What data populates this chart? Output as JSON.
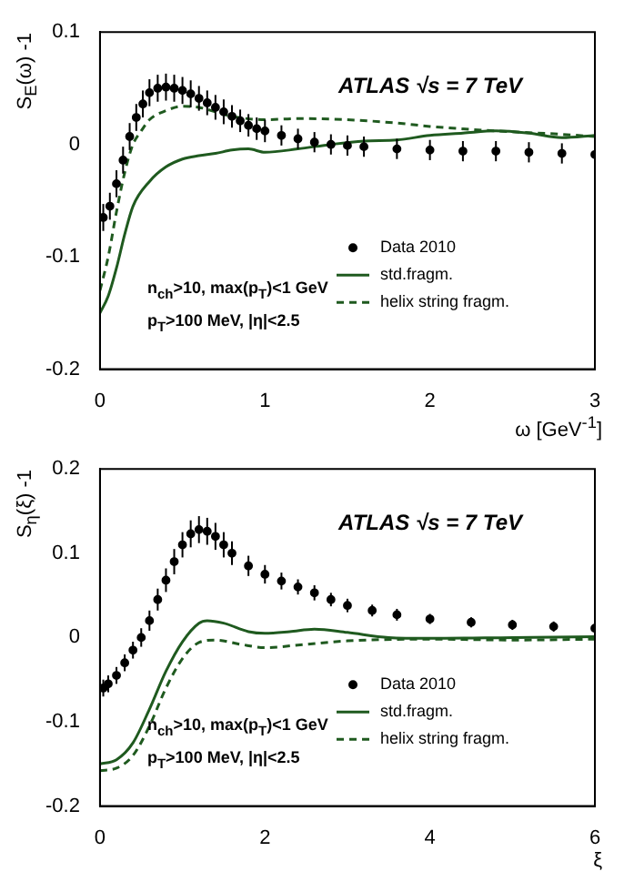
{
  "chart_data": [
    {
      "type": "scatter",
      "xlabel": "ω [GeV$^{-1}$]",
      "ylabel": "S$_{E}$(ω) -1",
      "xlim": [
        0,
        3
      ],
      "ylim": [
        -0.2,
        0.1
      ],
      "xticks": [
        0,
        1,
        2,
        3
      ],
      "yticks": [
        -0.2,
        -0.1,
        0,
        0.1
      ],
      "grid": false,
      "legend": "bottom right",
      "annotations": [
        "ATLAS √s = 7 TeV",
        "n$_{ch}$>10, max(p$_{T}$)<1 GeV",
        "p$_{T}$>100 MeV, |η|<2.5"
      ],
      "series": [
        {
          "name": "Data 2010",
          "type": "scatter",
          "marker": "circle",
          "color": "#000000",
          "x": [
            0.02,
            0.06,
            0.1,
            0.14,
            0.18,
            0.22,
            0.26,
            0.3,
            0.35,
            0.4,
            0.45,
            0.5,
            0.55,
            0.6,
            0.65,
            0.7,
            0.75,
            0.8,
            0.85,
            0.9,
            0.95,
            1.0,
            1.1,
            1.2,
            1.3,
            1.4,
            1.5,
            1.6,
            1.8,
            2.0,
            2.2,
            2.4,
            2.6,
            2.8,
            3.0
          ],
          "values": [
            -0.065,
            -0.055,
            -0.035,
            -0.014,
            0.007,
            0.024,
            0.036,
            0.046,
            0.05,
            0.051,
            0.05,
            0.048,
            0.045,
            0.041,
            0.037,
            0.033,
            0.029,
            0.025,
            0.021,
            0.017,
            0.014,
            0.012,
            0.008,
            0.005,
            0.002,
            0,
            -0.001,
            -0.002,
            -0.004,
            -0.005,
            -0.006,
            -0.006,
            -0.007,
            -0.008,
            -0.009
          ],
          "errors": [
            0.012,
            0.012,
            0.012,
            0.012,
            0.012,
            0.012,
            0.012,
            0.012,
            0.012,
            0.012,
            0.012,
            0.012,
            0.012,
            0.011,
            0.011,
            0.011,
            0.011,
            0.01,
            0.01,
            0.01,
            0.01,
            0.01,
            0.009,
            0.009,
            0.009,
            0.009,
            0.009,
            0.009,
            0.009,
            0.009,
            0.009,
            0.009,
            0.009,
            0.009,
            0.009
          ]
        },
        {
          "name": "std.fragm.",
          "type": "line",
          "marker": "none",
          "line_style": "solid",
          "color": "#1f5a1f",
          "x": [
            0,
            0.05,
            0.1,
            0.15,
            0.2,
            0.3,
            0.4,
            0.5,
            0.6,
            0.7,
            0.8,
            0.9,
            1.0,
            1.2,
            1.4,
            1.6,
            1.8,
            2.0,
            2.2,
            2.4,
            2.6,
            2.8,
            3.0
          ],
          "values": [
            -0.15,
            -0.135,
            -0.11,
            -0.08,
            -0.055,
            -0.033,
            -0.02,
            -0.013,
            -0.01,
            -0.008,
            -0.005,
            -0.004,
            -0.007,
            -0.004,
            0,
            0.003,
            0.004,
            0.008,
            0.01,
            0.012,
            0.01,
            0.006,
            0.008
          ]
        },
        {
          "name": "helix string fragm.",
          "type": "line",
          "marker": "none",
          "line_style": "dashed",
          "color": "#1f5a1f",
          "x": [
            0,
            0.05,
            0.1,
            0.15,
            0.2,
            0.25,
            0.3,
            0.4,
            0.5,
            0.6,
            0.7,
            0.8,
            1.0,
            1.2,
            1.5,
            1.8,
            2.0,
            2.4,
            2.8,
            3.0
          ],
          "values": [
            -0.13,
            -0.1,
            -0.06,
            -0.025,
            0,
            0.012,
            0.022,
            0.03,
            0.034,
            0.033,
            0.029,
            0.025,
            0.022,
            0.023,
            0.022,
            0.019,
            0.016,
            0.012,
            0.009,
            0.007
          ]
        }
      ]
    },
    {
      "type": "scatter",
      "xlabel": "ξ",
      "ylabel": "S$_{η}$(ξ) -1",
      "xlim": [
        0,
        6
      ],
      "ylim": [
        -0.2,
        0.2
      ],
      "xticks": [
        0,
        2,
        4,
        6
      ],
      "yticks": [
        -0.2,
        -0.1,
        0,
        0.1,
        0.2
      ],
      "grid": false,
      "legend": "bottom right",
      "annotations": [
        "ATLAS √s = 7 TeV",
        "n$_{ch}$>10, max(p$_{T}$)<1 GeV",
        "p$_{T}$>100 MeV, |η|<2.5"
      ],
      "series": [
        {
          "name": "Data 2010",
          "type": "scatter",
          "marker": "circle",
          "color": "#000000",
          "x": [
            0.04,
            0.1,
            0.2,
            0.3,
            0.4,
            0.5,
            0.6,
            0.7,
            0.8,
            0.9,
            1.0,
            1.1,
            1.2,
            1.3,
            1.4,
            1.5,
            1.6,
            1.8,
            2.0,
            2.2,
            2.4,
            2.6,
            2.8,
            3.0,
            3.3,
            3.6,
            4.0,
            4.5,
            5.0,
            5.5,
            6.0
          ],
          "values": [
            -0.06,
            -0.055,
            -0.045,
            -0.03,
            -0.015,
            0,
            0.02,
            0.045,
            0.068,
            0.09,
            0.11,
            0.123,
            0.128,
            0.126,
            0.12,
            0.11,
            0.1,
            0.085,
            0.075,
            0.067,
            0.06,
            0.053,
            0.045,
            0.038,
            0.032,
            0.027,
            0.022,
            0.018,
            0.015,
            0.013,
            0.011
          ],
          "errors": [
            0.01,
            0.01,
            0.01,
            0.01,
            0.01,
            0.011,
            0.012,
            0.013,
            0.014,
            0.015,
            0.015,
            0.016,
            0.016,
            0.016,
            0.016,
            0.015,
            0.014,
            0.012,
            0.011,
            0.01,
            0.009,
            0.009,
            0.008,
            0.008,
            0.007,
            0.007,
            0.006,
            0.006,
            0.006,
            0.006,
            0.006
          ]
        },
        {
          "name": "std.fragm.",
          "type": "line",
          "marker": "none",
          "line_style": "solid",
          "color": "#1f5a1f",
          "x": [
            0,
            0.2,
            0.4,
            0.6,
            0.8,
            1.0,
            1.2,
            1.3,
            1.5,
            1.8,
            2.0,
            2.3,
            2.6,
            3.0,
            3.5,
            4.0,
            5.0,
            6.0
          ],
          "values": [
            -0.15,
            -0.145,
            -0.125,
            -0.085,
            -0.04,
            -0.005,
            0.017,
            0.02,
            0.017,
            0.007,
            0.005,
            0.007,
            0.01,
            0.006,
            0,
            -0.001,
            0,
            0.001
          ]
        },
        {
          "name": "helix string fragm.",
          "type": "line",
          "marker": "none",
          "line_style": "dashed",
          "color": "#1f5a1f",
          "x": [
            0,
            0.2,
            0.4,
            0.6,
            0.8,
            1.0,
            1.2,
            1.4,
            1.7,
            2.0,
            2.5,
            3.0,
            4.0,
            5.0,
            6.0
          ],
          "values": [
            -0.158,
            -0.155,
            -0.14,
            -0.105,
            -0.06,
            -0.025,
            -0.006,
            -0.003,
            -0.008,
            -0.012,
            -0.008,
            -0.004,
            -0.002,
            -0.003,
            -0.002
          ]
        }
      ]
    }
  ]
}
